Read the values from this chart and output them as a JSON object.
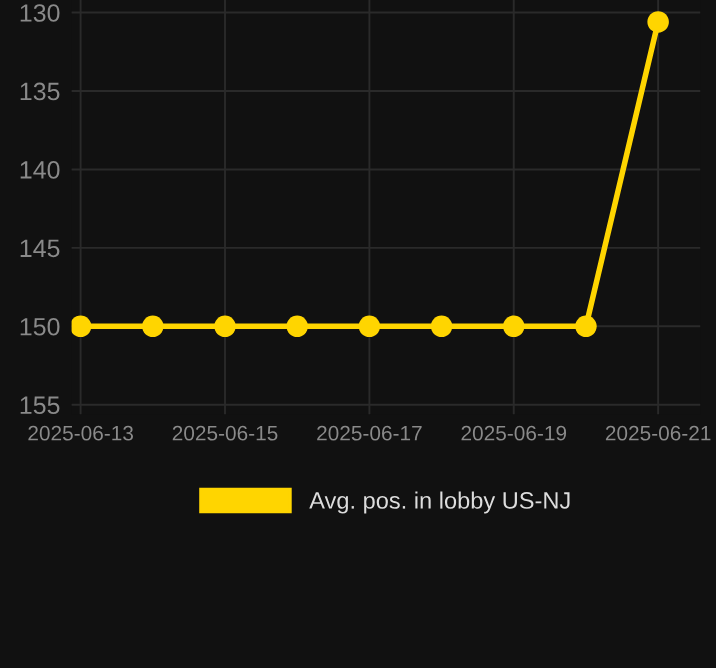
{
  "chart_data": {
    "type": "line",
    "x": [
      "2025-06-13",
      "2025-06-14",
      "2025-06-15",
      "2025-06-16",
      "2025-06-17",
      "2025-06-18",
      "2025-06-19",
      "2025-06-20",
      "2025-06-21"
    ],
    "series": [
      {
        "name": "Avg. pos. in lobby US-NJ",
        "color": "#ffd500",
        "values": [
          150,
          150,
          150,
          150,
          150,
          150,
          150,
          150,
          130.6
        ]
      }
    ],
    "ylim": [
      155.6,
      129.2
    ],
    "yticks": [
      130,
      135,
      140,
      145,
      150,
      155
    ],
    "xlim": [
      "2025-06-12T21:00",
      "2025-06-21T14:00"
    ],
    "xticks": [
      "2025-06-13",
      "2025-06-15",
      "2025-06-17",
      "2025-06-19",
      "2025-06-21"
    ],
    "grid": true,
    "legend": "bottom",
    "marker": "circle",
    "line_style": "solid"
  }
}
